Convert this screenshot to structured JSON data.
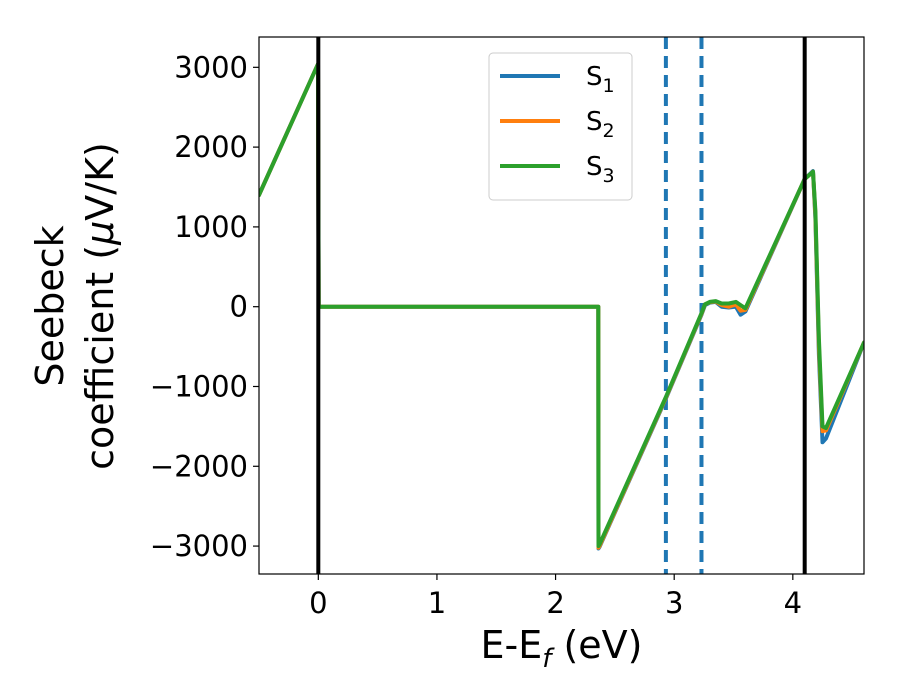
{
  "chart_data": {
    "type": "line",
    "title": "",
    "xlabel_main": "E-E",
    "xlabel_sub": "f",
    "xlabel_unit": " (eV)",
    "ylabel_line1": "Seebeck",
    "ylabel_line2_prefix": "coefficient  (",
    "ylabel_mu": "μ",
    "ylabel_line2_suffix": "V/K)",
    "xlim": [
      -0.5,
      4.6
    ],
    "ylim": [
      -3350,
      3380
    ],
    "x_ticks": [
      0,
      1,
      2,
      3,
      4
    ],
    "x_tick_labels": [
      "0",
      "1",
      "2",
      "3",
      "4"
    ],
    "y_ticks": [
      3000,
      2000,
      1000,
      0,
      -1000,
      -2000,
      -3000
    ],
    "y_tick_labels": [
      "3000",
      "2000",
      "1000",
      "0",
      "−1000",
      "−2000",
      "−3000"
    ],
    "vlines_solid": [
      0.0,
      4.1
    ],
    "vlines_dashed": [
      2.93,
      3.23
    ],
    "legend_position": "top-center",
    "legend": [
      {
        "base": "S",
        "sub": "1"
      },
      {
        "base": "S",
        "sub": "2"
      },
      {
        "base": "S",
        "sub": "3"
      }
    ],
    "series": [
      {
        "color": "#1f77b4",
        "x": [
          -0.5,
          -0.003,
          0.003,
          2.36,
          2.362,
          2.37,
          2.93,
          3.23,
          3.26,
          3.3,
          3.35,
          3.4,
          3.46,
          3.52,
          3.56,
          3.6,
          4.1,
          4.17,
          4.19,
          4.22,
          4.25,
          4.28,
          4.6
        ],
        "y": [
          1400,
          3040,
          0,
          0,
          -3030,
          -3010,
          -1150,
          -100,
          20,
          50,
          60,
          0,
          -10,
          0,
          -100,
          -60,
          1600,
          1700,
          1100,
          -600,
          -1700,
          -1650,
          -450
        ]
      },
      {
        "color": "#ff7f0e",
        "x": [
          -0.5,
          -0.003,
          0.003,
          2.36,
          2.362,
          2.37,
          2.93,
          3.23,
          3.26,
          3.3,
          3.35,
          3.4,
          3.46,
          3.52,
          3.56,
          3.6,
          4.1,
          4.17,
          4.19,
          4.22,
          4.25,
          4.28,
          4.6
        ],
        "y": [
          1400,
          3040,
          0,
          0,
          -3020,
          -3000,
          -1140,
          -90,
          30,
          55,
          65,
          20,
          0,
          30,
          -50,
          -40,
          1600,
          1690,
          1150,
          -500,
          -1560,
          -1550,
          -450
        ]
      },
      {
        "color": "#2ca02c",
        "x": [
          -0.5,
          -0.003,
          0.003,
          2.36,
          2.362,
          2.37,
          2.93,
          3.23,
          3.26,
          3.3,
          3.35,
          3.4,
          3.46,
          3.52,
          3.56,
          3.6,
          4.1,
          4.17,
          4.19,
          4.22,
          4.25,
          4.28,
          4.6
        ],
        "y": [
          1400,
          3040,
          0,
          0,
          -3000,
          -2980,
          -1130,
          -80,
          30,
          60,
          70,
          40,
          40,
          60,
          20,
          -20,
          1600,
          1690,
          1200,
          -400,
          -1500,
          -1520,
          -450
        ]
      }
    ]
  }
}
